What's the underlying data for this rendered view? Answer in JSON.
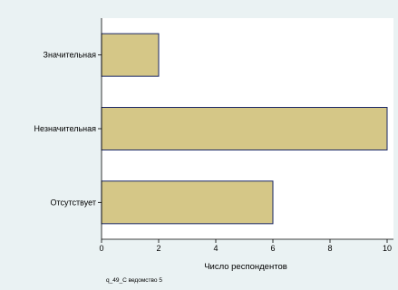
{
  "chart_data": {
    "type": "bar",
    "orientation": "horizontal",
    "categories": [
      "Значительная",
      "Незначительная",
      "Отсутствует"
    ],
    "values": [
      2,
      10,
      6
    ],
    "xlabel": "Число респондентов",
    "ylabel": "",
    "xlim": [
      0,
      10
    ],
    "xticks": [
      0,
      2,
      4,
      6,
      8,
      10
    ],
    "note": "q_49_С ведомство 5",
    "grid": false,
    "legend": "none"
  },
  "colors": {
    "background": "#eaf2f3",
    "plot_background": "#ffffff",
    "bar_fill": "#d5c787",
    "bar_stroke": "#1a2766",
    "axis": "#000000"
  }
}
